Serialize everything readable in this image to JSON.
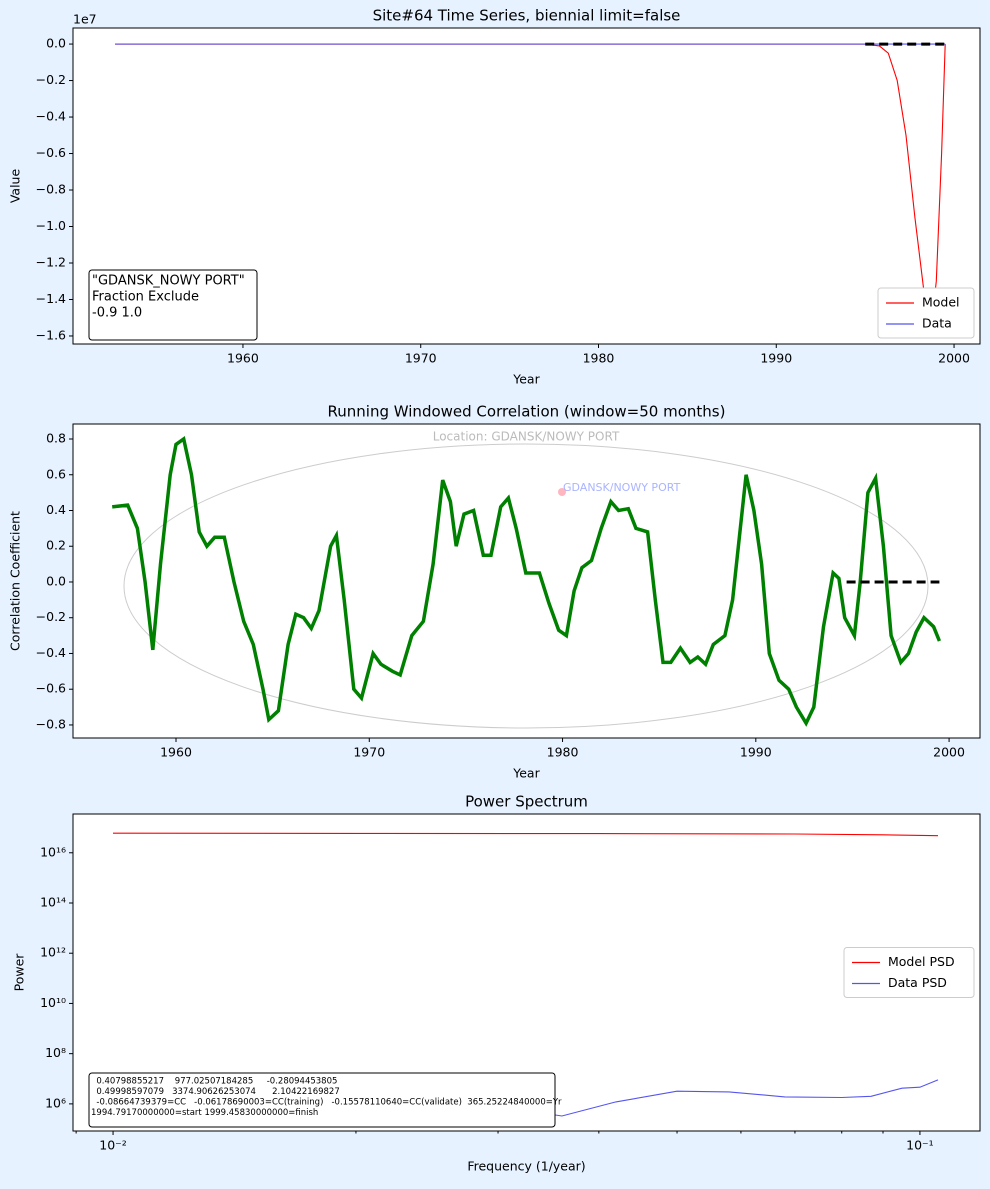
{
  "chart_data": [
    {
      "type": "line",
      "title": "Site#64 Time Series, biennial limit=false",
      "xlabel": "Year",
      "ylabel": "Value",
      "offset_label": "1e7",
      "xlim": [
        1950.44,
        2001.46
      ],
      "ylim": [
        -1.644,
        0.088
      ],
      "xticks": [
        1960,
        1970,
        1980,
        1990,
        2000
      ],
      "yticks": [
        {
          "value": 0,
          "label": "0.0"
        },
        {
          "value": -0.2,
          "label": "−0.2"
        },
        {
          "value": -0.4,
          "label": "−0.4"
        },
        {
          "value": -0.6,
          "label": "−0.6"
        },
        {
          "value": -0.8,
          "label": "−0.8"
        },
        {
          "value": -1.0,
          "label": "−1.0"
        },
        {
          "value": -1.2,
          "label": "−1.2"
        },
        {
          "value": -1.4,
          "label": "−1.4"
        },
        {
          "value": -1.6,
          "label": "−1.6"
        }
      ],
      "legend": "lower right",
      "annotation": [
        "\"GDANSK_NOWY PORT\"",
        "Fraction Exclude",
        "-0.9 1.0"
      ],
      "series": [
        {
          "name": "Model",
          "color": "#ff0000",
          "x": [
            1952.8,
            1995,
            1995.8,
            1996.3,
            1996.8,
            1997.3,
            1997.8,
            1998.3,
            1998.7,
            1999.0,
            1999.3,
            1999.5
          ],
          "values": [
            0,
            0,
            -0.01,
            -0.05,
            -0.2,
            -0.5,
            -0.95,
            -1.35,
            -1.57,
            -1.3,
            -0.6,
            0
          ]
        },
        {
          "name": "Data",
          "color": "#5555ee",
          "x": [
            1952.8,
            1999.5
          ],
          "values": [
            0,
            0
          ]
        },
        {
          "color": "#000000",
          "dash": true,
          "x": [
            1995,
            1999.5
          ],
          "values": [
            0,
            0
          ]
        }
      ]
    },
    {
      "type": "line",
      "title": "Running Windowed Correlation (window=50 months)",
      "xlabel": "Year",
      "ylabel": "Correlation Coefficient",
      "xlim": [
        1954.67,
        2001.6
      ],
      "ylim": [
        -0.873,
        0.884
      ],
      "xticks": [
        1960,
        1970,
        1980,
        1990,
        2000
      ],
      "yticks": [
        0.8,
        0.6,
        0.4,
        0.2,
        {
          "value": 0,
          "label": "0.0"
        },
        {
          "value": -0.2,
          "label": "−0.2"
        },
        {
          "value": -0.4,
          "label": "−0.4"
        },
        {
          "value": -0.6,
          "label": "−0.6"
        },
        {
          "value": -0.8,
          "label": "−0.8"
        }
      ],
      "map_labels": [
        "Location: GDANSK/NOWY PORT",
        "GDANSK/NOWY PORT"
      ],
      "series": [
        {
          "color": "#008000",
          "x": [
            1956.7,
            1957.5,
            1958.0,
            1958.4,
            1958.8,
            1959.2,
            1959.7,
            1960.0,
            1960.4,
            1960.8,
            1961.2,
            1961.6,
            1962.0,
            1962.5,
            1963.0,
            1963.5,
            1964.0,
            1964.5,
            1964.8,
            1965.3,
            1965.8,
            1966.2,
            1966.6,
            1967.0,
            1967.4,
            1968.0,
            1968.3,
            1968.7,
            1969.2,
            1969.6,
            1970.2,
            1970.6,
            1971.2,
            1971.6,
            1972.2,
            1972.8,
            1973.3,
            1973.8,
            1974.2,
            1974.5,
            1974.9,
            1975.4,
            1975.9,
            1976.3,
            1976.8,
            1977.2,
            1977.6,
            1978.1,
            1978.8,
            1979.3,
            1979.8,
            1980.2,
            1980.6,
            1981.0,
            1981.5,
            1982.0,
            1982.5,
            1982.9,
            1983.4,
            1983.8,
            1984.4,
            1984.8,
            1985.2,
            1985.6,
            1986.1,
            1986.6,
            1987.0,
            1987.4,
            1987.8,
            1988.4,
            1988.8,
            1989.2,
            1989.5,
            1989.9,
            1990.3,
            1990.7,
            1991.2,
            1991.7,
            1992.1,
            1992.6,
            1993.0,
            1993.5,
            1994.0,
            1994.3,
            1994.6,
            1995.1,
            1995.4,
            1995.8,
            1996.2,
            1996.6,
            1997.0,
            1997.5,
            1997.9,
            1998.3,
            1998.7,
            1999.2,
            1999.5
          ],
          "values": [
            0.42,
            0.43,
            0.3,
            0.0,
            -0.38,
            0.1,
            0.6,
            0.77,
            0.8,
            0.6,
            0.28,
            0.2,
            0.25,
            0.25,
            0.0,
            -0.22,
            -0.35,
            -0.6,
            -0.77,
            -0.72,
            -0.35,
            -0.18,
            -0.2,
            -0.26,
            -0.16,
            0.2,
            0.26,
            -0.1,
            -0.6,
            -0.65,
            -0.4,
            -0.46,
            -0.5,
            -0.52,
            -0.3,
            -0.22,
            0.1,
            0.57,
            0.45,
            0.2,
            0.38,
            0.4,
            0.15,
            0.15,
            0.42,
            0.47,
            0.3,
            0.05,
            0.05,
            -0.12,
            -0.27,
            -0.3,
            -0.05,
            0.08,
            0.12,
            0.3,
            0.45,
            0.4,
            0.41,
            0.3,
            0.28,
            -0.1,
            -0.45,
            -0.45,
            -0.37,
            -0.45,
            -0.42,
            -0.46,
            -0.35,
            -0.3,
            -0.1,
            0.3,
            0.6,
            0.4,
            0.1,
            -0.4,
            -0.55,
            -0.6,
            -0.7,
            -0.79,
            -0.7,
            -0.25,
            0.05,
            0.02,
            -0.2,
            -0.3,
            0.0,
            0.5,
            0.58,
            0.2,
            -0.3,
            -0.45,
            -0.4,
            -0.28,
            -0.2,
            -0.25,
            -0.33
          ]
        },
        {
          "color": "#000000",
          "dash": true,
          "x": [
            1994.7,
            1999.5
          ],
          "values": [
            0,
            0
          ]
        }
      ]
    },
    {
      "type": "line",
      "title": "Power Spectrum",
      "xlabel": "Frequency (1/year)",
      "ylabel": "Power",
      "log_x": true,
      "log_y": true,
      "xlim": [
        0.00892,
        0.1187
      ],
      "ylim": [
        83176,
        3.5e+17
      ],
      "xticks": [
        {
          "value": 0.01,
          "label": "10⁻²"
        },
        {
          "value": 0.1,
          "label": "10⁻¹"
        }
      ],
      "yticks": [
        {
          "value": 1000000.0,
          "label": "10⁶"
        },
        {
          "value": 100000000.0,
          "label": "10⁸"
        },
        {
          "value": 10000000000.0,
          "label": "10¹⁰"
        },
        {
          "value": 1000000000000.0,
          "label": "10¹²"
        },
        {
          "value": 100000000000000.0,
          "label": "10¹⁴"
        },
        {
          "value": 1e+16,
          "label": "10¹⁶"
        }
      ],
      "legend": "center right",
      "annotation": [
        "  0.40798855217    977.02507184285     -0.28094453805",
        "  0.49998597079   3374.90626253074      2.10422169827",
        "  -0.08664739379=CC   -0.06178690003=CC(training)   -0.15578110640=CC(validate)  365.25224840000=Yr",
        "1994.79170000000=start 1999.45830000000=finish"
      ],
      "series": [
        {
          "name": "Model PSD",
          "color": "#ff0000",
          "x": [
            0.01,
            0.02,
            0.04,
            0.07,
            0.09,
            0.1053
          ],
          "values": [
            6e+16,
            5.9e+16,
            5.8e+16,
            5.6e+16,
            5.2e+16,
            4.8e+16
          ]
        },
        {
          "name": "Data PSD",
          "color": "#5555ee",
          "x": [
            0.01,
            0.02,
            0.03,
            0.036,
            0.042,
            0.05,
            0.058,
            0.068,
            0.08,
            0.087,
            0.095,
            0.1,
            0.1053
          ],
          "values": [
            2000000.0,
            1500000.0,
            800000.0,
            330000.0,
            1200000.0,
            3200000.0,
            3000000.0,
            1900000.0,
            1800000.0,
            2000000.0,
            4200000.0,
            4600000.0,
            9000000.0
          ]
        }
      ]
    }
  ]
}
